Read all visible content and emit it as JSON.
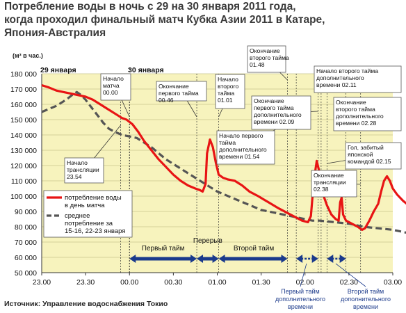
{
  "title": {
    "line1": "Потребление воды в ночь с 29 на 30 января 2011 года,",
    "line2": "когда проходил финальный матч Кубка Азии 2011 в Катаре,",
    "line3": "Япония-Австралия"
  },
  "unit_label": "(м³ в час.)",
  "source": "Источник: Управление водоснабжения Токио",
  "colors": {
    "match": "#e81414",
    "average": "#555555",
    "plot_bg": "#f7f3bd",
    "arrow": "#1a3a8c"
  },
  "chart_data": {
    "type": "line",
    "xlabel": "",
    "ylabel": "(м³ в час.)",
    "ylim": [
      50000,
      180000
    ],
    "y_ticks": [
      "180 000",
      "170 000",
      "160 000",
      "150 000",
      "140 000",
      "130 000",
      "120 000",
      "110 000",
      "100 000",
      "90 000",
      "80 000",
      "70 000",
      "60 000",
      "50 000"
    ],
    "x_ticks": [
      "23.00",
      "23.30",
      "00.00",
      "00.30",
      "01.00",
      "01.30",
      "02.00",
      "02.30",
      "03.00"
    ],
    "xlim_minutes_from_23": [
      0,
      240
    ],
    "dates": [
      "29 января",
      "30 января"
    ],
    "series": [
      {
        "name": "потребление воды в день матча",
        "points": [
          [
            0,
            172500
          ],
          [
            5,
            171000
          ],
          [
            10,
            169000
          ],
          [
            15,
            168000
          ],
          [
            20,
            167000
          ],
          [
            25,
            166000
          ],
          [
            30,
            165000
          ],
          [
            35,
            163000
          ],
          [
            40,
            160000
          ],
          [
            45,
            157000
          ],
          [
            50,
            154000
          ],
          [
            55,
            151000
          ],
          [
            58,
            150000
          ],
          [
            62,
            147000
          ],
          [
            66,
            142000
          ],
          [
            70,
            136000
          ],
          [
            75,
            130000
          ],
          [
            80,
            124000
          ],
          [
            85,
            119000
          ],
          [
            90,
            114000
          ],
          [
            95,
            110000
          ],
          [
            100,
            107000
          ],
          [
            105,
            105000
          ],
          [
            108,
            104000
          ],
          [
            110,
            103000
          ],
          [
            112,
            108000
          ],
          [
            113,
            128000
          ],
          [
            115,
            137000
          ],
          [
            117,
            132000
          ],
          [
            119,
            122000
          ],
          [
            121,
            114000
          ],
          [
            124,
            112000
          ],
          [
            127,
            111000
          ],
          [
            132,
            110000
          ],
          [
            137,
            107000
          ],
          [
            142,
            103000
          ],
          [
            148,
            100000
          ],
          [
            155,
            96000
          ],
          [
            162,
            92000
          ],
          [
            170,
            88000
          ],
          [
            178,
            84000
          ],
          [
            182,
            83000
          ],
          [
            184,
            87000
          ],
          [
            186,
            110000
          ],
          [
            188,
            123000
          ],
          [
            190,
            115000
          ],
          [
            192,
            102000
          ],
          [
            195,
            94000
          ],
          [
            198,
            88000
          ],
          [
            201,
            85000
          ],
          [
            203,
            84000
          ],
          [
            204,
            96000
          ],
          [
            205,
            99000
          ],
          [
            206,
            88000
          ],
          [
            208,
            84000
          ],
          [
            212,
            82000
          ],
          [
            216,
            80000
          ],
          [
            219,
            78000
          ],
          [
            221,
            79000
          ],
          [
            224,
            84000
          ],
          [
            227,
            90000
          ],
          [
            230,
            95000
          ],
          [
            232,
            103000
          ],
          [
            234,
            110000
          ],
          [
            236,
            113000
          ],
          [
            238,
            110000
          ],
          [
            240,
            105000
          ],
          [
            243,
            101000
          ],
          [
            247,
            97000
          ],
          [
            252,
            93000
          ],
          [
            258,
            90000
          ],
          [
            262,
            88000
          ]
        ]
      },
      {
        "name": "среднее потребление за 15-16, 22-23 января",
        "points": [
          [
            0,
            155000
          ],
          [
            5,
            157000
          ],
          [
            10,
            159000
          ],
          [
            15,
            162000
          ],
          [
            18,
            164000
          ],
          [
            22,
            167000
          ],
          [
            24,
            168000
          ],
          [
            27,
            166000
          ],
          [
            30,
            163000
          ],
          [
            34,
            158000
          ],
          [
            38,
            153000
          ],
          [
            42,
            148000
          ],
          [
            46,
            144000
          ],
          [
            50,
            142000
          ],
          [
            55,
            140000
          ],
          [
            60,
            139000
          ],
          [
            65,
            138000
          ],
          [
            70,
            135000
          ],
          [
            75,
            132000
          ],
          [
            80,
            128000
          ],
          [
            85,
            124000
          ],
          [
            90,
            121000
          ],
          [
            95,
            118000
          ],
          [
            100,
            115000
          ],
          [
            105,
            112000
          ],
          [
            110,
            109000
          ],
          [
            115,
            106000
          ],
          [
            120,
            103000
          ],
          [
            125,
            101000
          ],
          [
            130,
            99000
          ],
          [
            135,
            97000
          ],
          [
            140,
            95000
          ],
          [
            145,
            93000
          ],
          [
            150,
            91000
          ],
          [
            155,
            90000
          ],
          [
            160,
            89000
          ],
          [
            165,
            88000
          ],
          [
            170,
            87000
          ],
          [
            175,
            86000
          ],
          [
            180,
            85000
          ],
          [
            185,
            84000
          ],
          [
            190,
            84000
          ],
          [
            195,
            83500
          ],
          [
            200,
            83000
          ],
          [
            205,
            82500
          ],
          [
            210,
            82000
          ],
          [
            215,
            81000
          ],
          [
            220,
            80000
          ],
          [
            225,
            79500
          ],
          [
            230,
            79000
          ],
          [
            235,
            78500
          ],
          [
            240,
            78000
          ],
          [
            245,
            77000
          ],
          [
            250,
            76000
          ],
          [
            255,
            75000
          ],
          [
            262,
            73000
          ]
        ]
      }
    ],
    "annotations": [
      {
        "id": "broadcast-start",
        "lines": [
          "Начало",
          "трансляции",
          "23.54"
        ]
      },
      {
        "id": "match-start",
        "lines": [
          "Начало",
          "матча",
          "00.00"
        ]
      },
      {
        "id": "first-half-end",
        "lines": [
          "Окончание",
          "первого тайма",
          "00.46"
        ]
      },
      {
        "id": "second-half-start",
        "lines": [
          "Начало",
          "второго",
          "тайма",
          "01.01"
        ]
      },
      {
        "id": "second-half-end",
        "lines": [
          "Окончание",
          "второго тайма",
          "01.48"
        ]
      },
      {
        "id": "et-first-start",
        "lines": [
          "Начало первого",
          "тайма",
          "дополнительного",
          "времени 01.54"
        ]
      },
      {
        "id": "et-first-end",
        "lines": [
          "Окончание",
          "первого тайма",
          "дополнительного",
          "времени 02.09"
        ]
      },
      {
        "id": "et-second-start",
        "lines": [
          "Начало второго тайма",
          "дополнительного",
          "времени 02.11"
        ]
      },
      {
        "id": "et-second-end",
        "lines": [
          "Окончание",
          "второго тайма",
          "дополнительного",
          "времени 02.28"
        ]
      },
      {
        "id": "goal",
        "lines": [
          "Гол, забитый",
          "японской",
          "командой 02.15"
        ]
      },
      {
        "id": "broadcast-end",
        "lines": [
          "Окончание",
          "трансляции",
          "02.38"
        ]
      }
    ],
    "phases": [
      {
        "id": "first-half",
        "label": "Первый тайм"
      },
      {
        "id": "break",
        "label": "Перерыв"
      },
      {
        "id": "second-half",
        "label": "Второй тайм"
      }
    ],
    "et_labels": [
      {
        "id": "et-first",
        "lines": [
          "Первый тайм",
          "дополнительного",
          "времени"
        ]
      },
      {
        "id": "et-second",
        "lines": [
          "Второй тайм",
          "дополнительного",
          "времени"
        ]
      }
    ],
    "legend": [
      "потребление воды",
      "в день матча",
      "среднее",
      "потребление за",
      "15-16, 22-23 января"
    ]
  }
}
